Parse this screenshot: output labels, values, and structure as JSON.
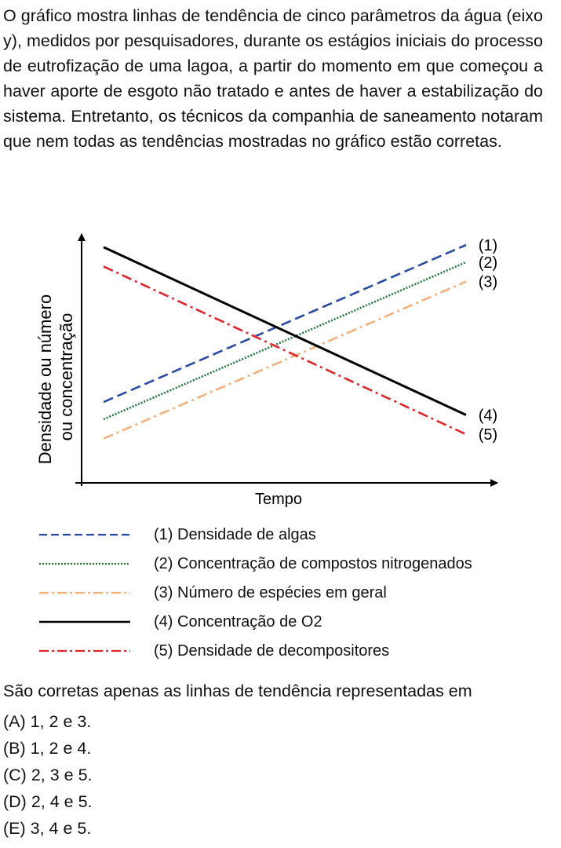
{
  "intro_text": "O gráfico mostra linhas de tendência de cinco parâmetros da água (eixo y), medidos por pesquisadores, durante os estágios iniciais do processo de eutrofização de uma lagoa, a partir do momento em que começou a haver aporte de esgoto não tratado e antes de haver a estabilização do sistema. Entretanto, os técnicos da companhia de saneamento notaram que nem todas as tendências mostradas no gráfico estão corretas.",
  "chart_data": {
    "type": "line",
    "title": "",
    "xlabel": "Tempo",
    "ylabel": [
      "Densidade ou número",
      "ou concentração"
    ],
    "xlim": [
      0,
      1
    ],
    "ylim": [
      0,
      1
    ],
    "grid": false,
    "legend_position": "below",
    "series": [
      {
        "tag": "(1)",
        "name": "(1) Densidade de algas",
        "color": "#2b4aa3",
        "style": "dashed",
        "x": [
          0,
          1
        ],
        "y": [
          0.27,
          1.0
        ]
      },
      {
        "tag": "(2)",
        "name": "(2) Concentração de compostos nitrogenados",
        "color": "#1f7a3a",
        "style": "dotted",
        "x": [
          0,
          1
        ],
        "y": [
          0.19,
          0.92
        ]
      },
      {
        "tag": "(3)",
        "name": "(3) Número de espécies em geral",
        "color": "#f4b07a",
        "style": "dashdot",
        "x": [
          0,
          1
        ],
        "y": [
          0.1,
          0.83
        ]
      },
      {
        "tag": "(4)",
        "name": "(4) Concentração de O2",
        "color": "#000000",
        "style": "solid",
        "x": [
          0,
          1
        ],
        "y": [
          0.99,
          0.21
        ]
      },
      {
        "tag": "(5)",
        "name": "(5) Densidade de decompositores",
        "color": "#e0262a",
        "style": "dashdot",
        "x": [
          0,
          1
        ],
        "y": [
          0.9,
          0.12
        ]
      }
    ]
  },
  "question": "São corretas apenas as linhas de tendência representadas em",
  "options": [
    "(A) 1, 2 e 3.",
    "(B) 1, 2 e 4.",
    "(C) 2, 3 e 5.",
    "(D) 2, 4 e 5.",
    "(E) 3, 4 e 5."
  ]
}
